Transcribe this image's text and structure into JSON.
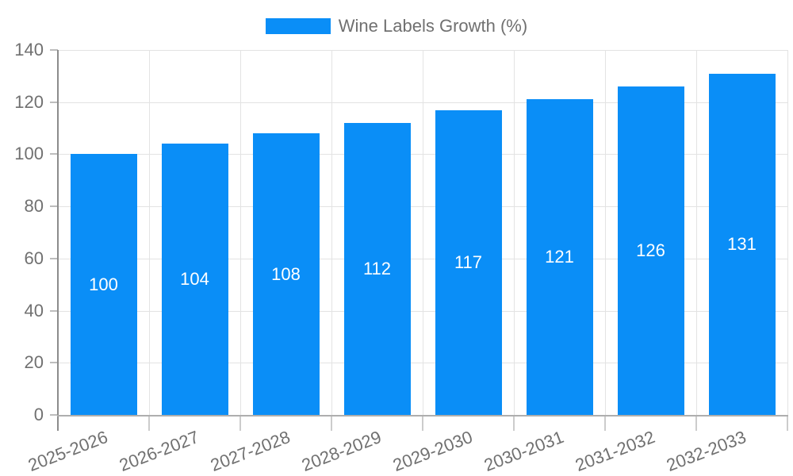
{
  "chart_data": {
    "type": "bar",
    "legend_label": "Wine Labels Growth (%)",
    "legend_position": "top-center",
    "categories": [
      "2025-2026",
      "2026-2027",
      "2027-2028",
      "2028-2029",
      "2029-2030",
      "2030-2031",
      "2031-2032",
      "2032-2033"
    ],
    "values": [
      100,
      104,
      108,
      112,
      117,
      121,
      126,
      131
    ],
    "y_ticks": [
      0,
      20,
      40,
      60,
      80,
      100,
      120,
      140
    ],
    "ylim": [
      0,
      140
    ],
    "grid": true,
    "x_label_rotation_deg": -21,
    "colors": {
      "bar": "#0a8ef7",
      "axis_text": "#707070",
      "value_label": "#ffffff",
      "grid": "#e3e3e3",
      "axis_line": "#8c8c8c",
      "baseline": "#aeaeae",
      "y_tick": "#bdbdbd",
      "x_tick": "#cccccc"
    }
  }
}
